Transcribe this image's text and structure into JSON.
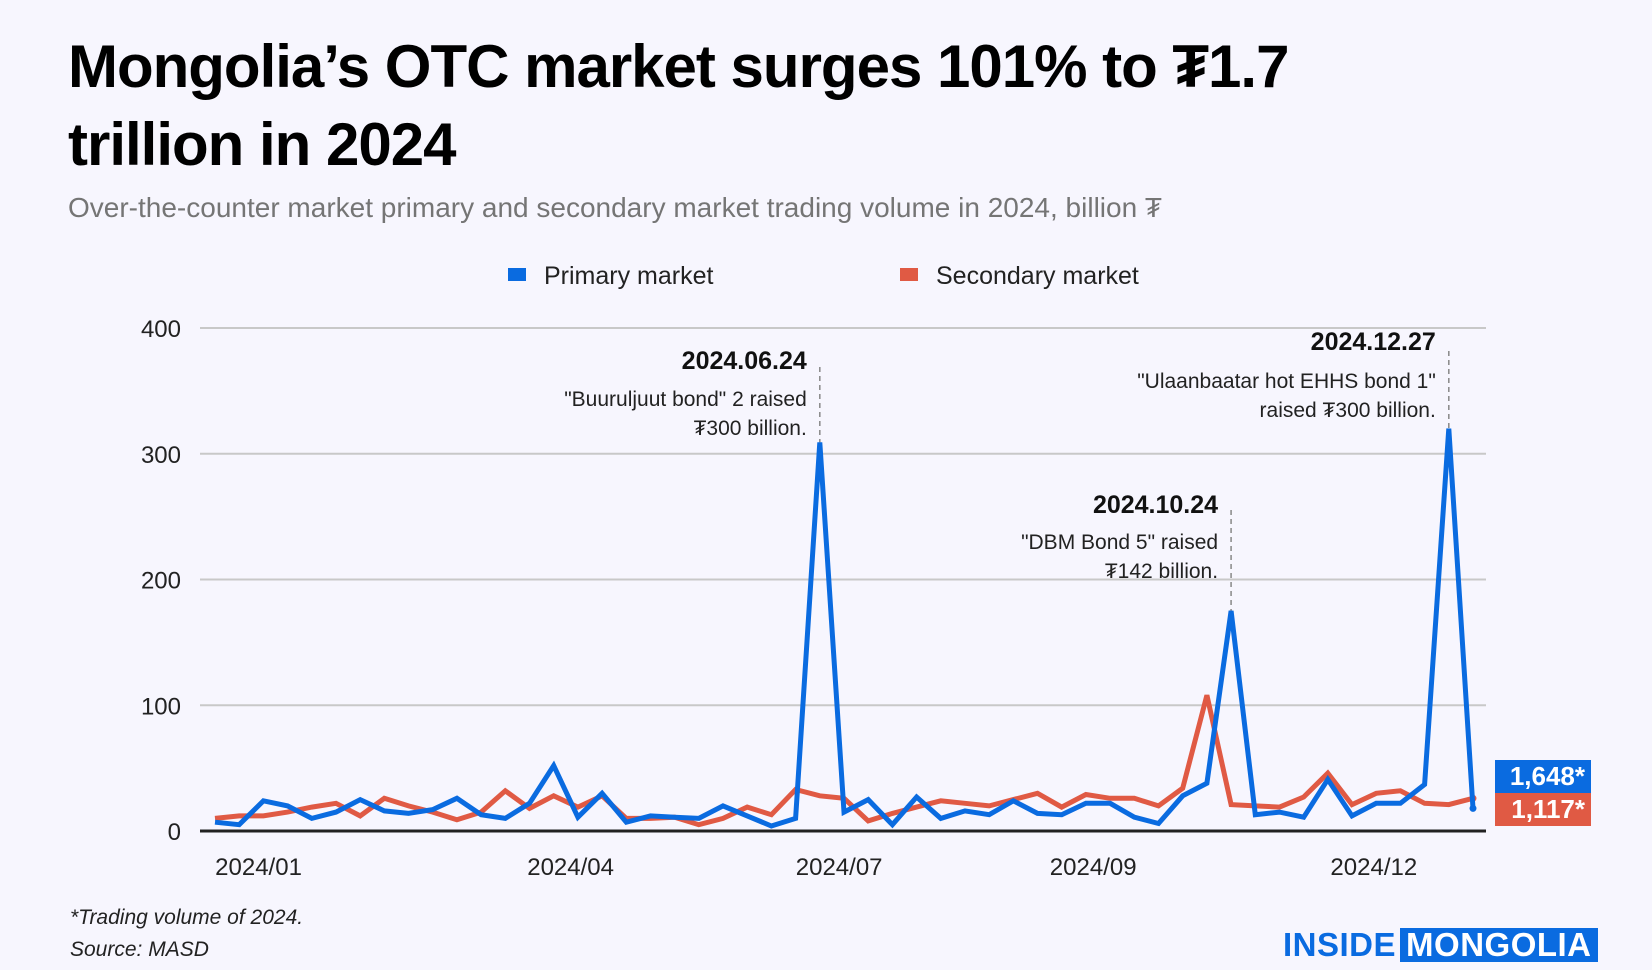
{
  "title": "Mongolia’s OTC market surges 101% to ₮1.7 trillion in 2024",
  "subtitle": "Over-the-counter market primary and secondary market trading volume in 2024, billion ₮",
  "footer": {
    "note": "*Trading volume of 2024.",
    "source": "Source: MASD"
  },
  "logo": {
    "part1": "INSIDE",
    "part2": "MONGOLIA"
  },
  "totals": {
    "primary": "1,648*",
    "secondary": "1,117*"
  },
  "colors": {
    "primary": "#0a6be0",
    "secondary": "#e05a44",
    "background": "#f7f6fe"
  },
  "chart_data": {
    "type": "line",
    "title": "Mongolia’s OTC market surges 101% to ₮1.7 trillion in 2024",
    "ylim": [
      0,
      400
    ],
    "yticks": [
      "0",
      "100",
      "200",
      "300",
      "400"
    ],
    "xtick_labels": [
      {
        "label": "2024/01",
        "index": 1.8
      },
      {
        "label": "2024/04",
        "index": 14.7
      },
      {
        "label": "2024/07",
        "index": 25.8
      },
      {
        "label": "2024/09",
        "index": 36.3
      },
      {
        "label": "2024/12",
        "index": 47.9
      }
    ],
    "grid": true,
    "legend_position": "top",
    "series": [
      {
        "name": "Primary market",
        "color": "#0a6be0",
        "values": [
          7,
          5,
          24,
          20,
          10,
          15,
          25,
          16,
          14,
          17,
          26,
          13,
          10,
          22,
          52,
          11,
          30,
          7,
          12,
          11,
          10,
          20,
          12,
          4,
          10,
          309,
          15,
          25,
          5,
          27,
          10,
          16,
          13,
          24,
          14,
          13,
          22,
          22,
          11,
          6,
          28,
          38,
          175,
          13,
          15,
          11,
          41,
          12,
          22,
          22,
          37,
          320,
          18
        ]
      },
      {
        "name": "Secondary market",
        "color": "#e05a44",
        "values": [
          10,
          12,
          12,
          15,
          19,
          22,
          12,
          26,
          20,
          15,
          9,
          15,
          32,
          18,
          28,
          19,
          28,
          10,
          10,
          11,
          5,
          10,
          19,
          13,
          33,
          28,
          26,
          8,
          14,
          19,
          24,
          22,
          20,
          25,
          30,
          19,
          29,
          26,
          26,
          20,
          34,
          108,
          21,
          20,
          19,
          27,
          46,
          21,
          30,
          32,
          22,
          21,
          26
        ]
      }
    ],
    "annotations": [
      {
        "date": "2024.06.24",
        "lines": [
          "\"Buuruljuut bond\" 2 raised",
          "₮300 billion."
        ],
        "index": 25
      },
      {
        "date": "2024.10.24",
        "lines": [
          "\"DBM Bond 5\" raised",
          "₮142 billion."
        ],
        "index": 42
      },
      {
        "date": "2024.12.27",
        "lines": [
          "\"Ulaanbaatar hot EHHS bond 1\"",
          "raised ₮300 billion."
        ],
        "index": 51
      }
    ]
  }
}
